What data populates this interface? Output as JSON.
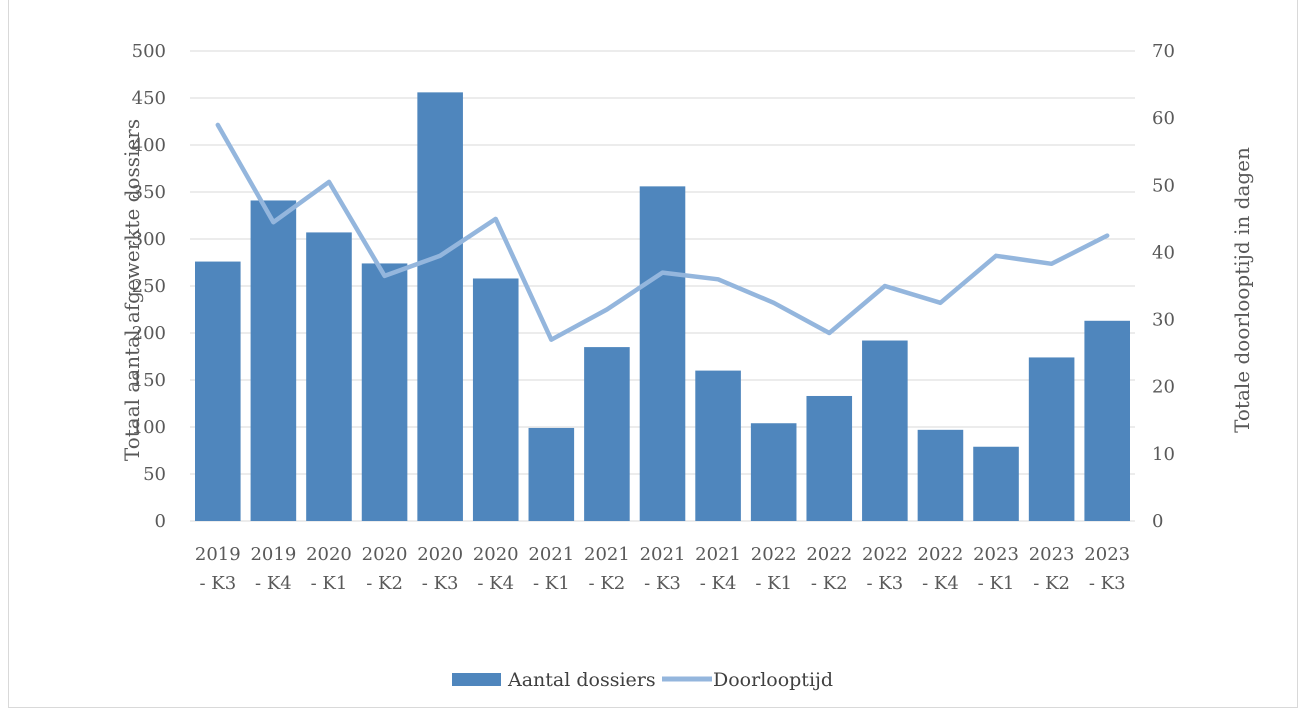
{
  "chart_data": {
    "type": "bar",
    "categories": [
      [
        "2019",
        "- K3"
      ],
      [
        "2019",
        "- K4"
      ],
      [
        "2020",
        "- K1"
      ],
      [
        "2020",
        "- K2"
      ],
      [
        "2020",
        "- K3"
      ],
      [
        "2020",
        "- K4"
      ],
      [
        "2021",
        "- K1"
      ],
      [
        "2021",
        "- K2"
      ],
      [
        "2021",
        "- K3"
      ],
      [
        "2021",
        "- K4"
      ],
      [
        "2022",
        "- K1"
      ],
      [
        "2022",
        "- K2"
      ],
      [
        "2022",
        "- K3"
      ],
      [
        "2022",
        "- K4"
      ],
      [
        "2023",
        "- K1"
      ],
      [
        "2023",
        "- K2"
      ],
      [
        "2023",
        "- K3"
      ]
    ],
    "series": [
      {
        "name": "Aantal dossiers",
        "type": "bar",
        "axis": "left",
        "color": "#4f86bd",
        "values": [
          276,
          341,
          307,
          274,
          456,
          258,
          99,
          185,
          356,
          160,
          104,
          133,
          192,
          97,
          79,
          174,
          213
        ]
      },
      {
        "name": "Doorlooptijd",
        "type": "line",
        "axis": "right",
        "color": "#94b6dd",
        "values": [
          59,
          44.5,
          50.5,
          36.5,
          39.5,
          45,
          27,
          31.5,
          37,
          36,
          32.5,
          28,
          35,
          32.5,
          39.5,
          38.3,
          42.5
        ]
      }
    ],
    "y_left": {
      "label": "Totaal aantal afgewerkte dossiers",
      "range": [
        0,
        500
      ],
      "ticks": [
        "0",
        "50",
        "100",
        "150",
        "200",
        "250",
        "300",
        "350",
        "400",
        "450",
        "500"
      ]
    },
    "y_right": {
      "label": "Totale doorlooptijd in dagen",
      "range": [
        0,
        70
      ],
      "ticks": [
        "0",
        "10",
        "20",
        "30",
        "40",
        "50",
        "60",
        "70"
      ]
    },
    "grid": true,
    "legend": "bottom-center"
  }
}
